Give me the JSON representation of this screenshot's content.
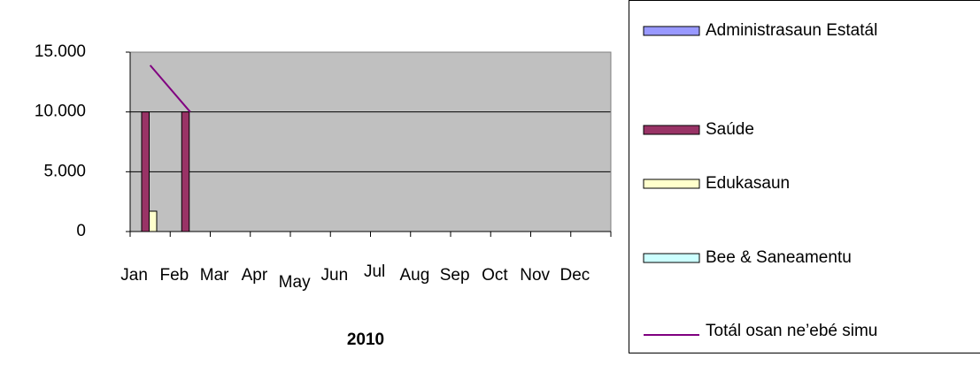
{
  "chart_data": {
    "type": "bar",
    "categories": [
      "Jan",
      "Feb",
      "Mar",
      "Apr",
      "May",
      "Jun",
      "Jul",
      "Aug",
      "Sep",
      "Oct",
      "Nov",
      "Dec"
    ],
    "x_label": "2010",
    "series": [
      {
        "name": "Administrasaun Estatál",
        "color": "#9999ff",
        "kind": "bar",
        "values": [
          null,
          null,
          null,
          null,
          null,
          null,
          null,
          null,
          null,
          null,
          null,
          null
        ]
      },
      {
        "name": "Saúde",
        "color": "#993366",
        "kind": "bar",
        "values": [
          10000,
          10000,
          null,
          null,
          null,
          null,
          null,
          null,
          null,
          null,
          null,
          null
        ]
      },
      {
        "name": "Edukasaun",
        "color": "#ffffcc",
        "kind": "bar",
        "values": [
          1700,
          null,
          null,
          null,
          null,
          null,
          null,
          null,
          null,
          null,
          null,
          null
        ]
      },
      {
        "name": "Bee & Saneamentu",
        "color": "#ccffff",
        "kind": "bar",
        "values": [
          null,
          null,
          null,
          null,
          null,
          null,
          null,
          null,
          null,
          null,
          null,
          null
        ]
      },
      {
        "name": "Totál osan ne’ebé simu",
        "color": "#800080",
        "kind": "line",
        "values": [
          13900,
          10000,
          null,
          null,
          null,
          null,
          null,
          null,
          null,
          null,
          null,
          null
        ]
      }
    ],
    "ylim": [
      0,
      15000
    ],
    "yticks": [
      0,
      {
        "value": 5000,
        "label": "5.000"
      },
      {
        "value": 10000,
        "label": "10.000"
      },
      {
        "value": 15000,
        "label": "15.000"
      }
    ],
    "grid": true,
    "plot_background": "#c0c0c0",
    "legend": "right"
  }
}
